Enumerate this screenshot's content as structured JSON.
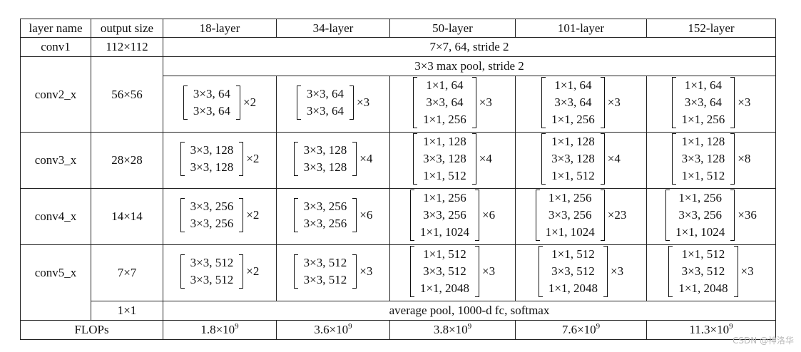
{
  "header": [
    "layer name",
    "output size",
    "18-layer",
    "34-layer",
    "50-layer",
    "101-layer",
    "152-layer"
  ],
  "conv1": {
    "name": "conv1",
    "size": "112×112",
    "desc": "7×7, 64, stride 2"
  },
  "pool": {
    "desc": "3×3 max pool, stride 2"
  },
  "blocks": [
    {
      "name": "conv2_x",
      "size": "56×56",
      "cells": [
        {
          "lines": [
            "3×3, 64",
            "3×3, 64"
          ],
          "mult": "×2"
        },
        {
          "lines": [
            "3×3, 64",
            "3×3, 64"
          ],
          "mult": "×3"
        },
        {
          "lines": [
            "1×1, 64",
            "3×3, 64",
            "1×1, 256"
          ],
          "mult": "×3"
        },
        {
          "lines": [
            "1×1, 64",
            "3×3, 64",
            "1×1, 256"
          ],
          "mult": "×3"
        },
        {
          "lines": [
            "1×1, 64",
            "3×3, 64",
            "1×1, 256"
          ],
          "mult": "×3"
        }
      ]
    },
    {
      "name": "conv3_x",
      "size": "28×28",
      "cells": [
        {
          "lines": [
            "3×3, 128",
            "3×3, 128"
          ],
          "mult": "×2"
        },
        {
          "lines": [
            "3×3, 128",
            "3×3, 128"
          ],
          "mult": "×4"
        },
        {
          "lines": [
            "1×1, 128",
            "3×3, 128",
            "1×1, 512"
          ],
          "mult": "×4"
        },
        {
          "lines": [
            "1×1, 128",
            "3×3, 128",
            "1×1, 512"
          ],
          "mult": "×4"
        },
        {
          "lines": [
            "1×1, 128",
            "3×3, 128",
            "1×1, 512"
          ],
          "mult": "×8"
        }
      ]
    },
    {
      "name": "conv4_x",
      "size": "14×14",
      "cells": [
        {
          "lines": [
            "3×3, 256",
            "3×3, 256"
          ],
          "mult": "×2"
        },
        {
          "lines": [
            "3×3, 256",
            "3×3, 256"
          ],
          "mult": "×6"
        },
        {
          "lines": [
            "1×1, 256",
            "3×3, 256",
            "1×1, 1024"
          ],
          "mult": "×6"
        },
        {
          "lines": [
            "1×1, 256",
            "3×3, 256",
            "1×1, 1024"
          ],
          "mult": "×23"
        },
        {
          "lines": [
            "1×1, 256",
            "3×3, 256",
            "1×1, 1024"
          ],
          "mult": "×36"
        }
      ]
    },
    {
      "name": "conv5_x",
      "size": "7×7",
      "cells": [
        {
          "lines": [
            "3×3, 512",
            "3×3, 512"
          ],
          "mult": "×2"
        },
        {
          "lines": [
            "3×3, 512",
            "3×3, 512"
          ],
          "mult": "×3"
        },
        {
          "lines": [
            "1×1, 512",
            "3×3, 512",
            "1×1, 2048"
          ],
          "mult": "×3"
        },
        {
          "lines": [
            "1×1, 512",
            "3×3, 512",
            "1×1, 2048"
          ],
          "mult": "×3"
        },
        {
          "lines": [
            "1×1, 512",
            "3×3, 512",
            "1×1, 2048"
          ],
          "mult": "×3"
        }
      ]
    }
  ],
  "final": {
    "size": "1×1",
    "desc": "average pool, 1000-d fc, softmax"
  },
  "flops": {
    "label": "FLOPs",
    "values": [
      {
        "base": "1.8×10",
        "exp": "9"
      },
      {
        "base": "3.6×10",
        "exp": "9"
      },
      {
        "base": "3.8×10",
        "exp": "9"
      },
      {
        "base": "7.6×10",
        "exp": "9"
      },
      {
        "base": "11.3×10",
        "exp": "9"
      }
    ]
  },
  "watermark": "CSDN @神洛华"
}
